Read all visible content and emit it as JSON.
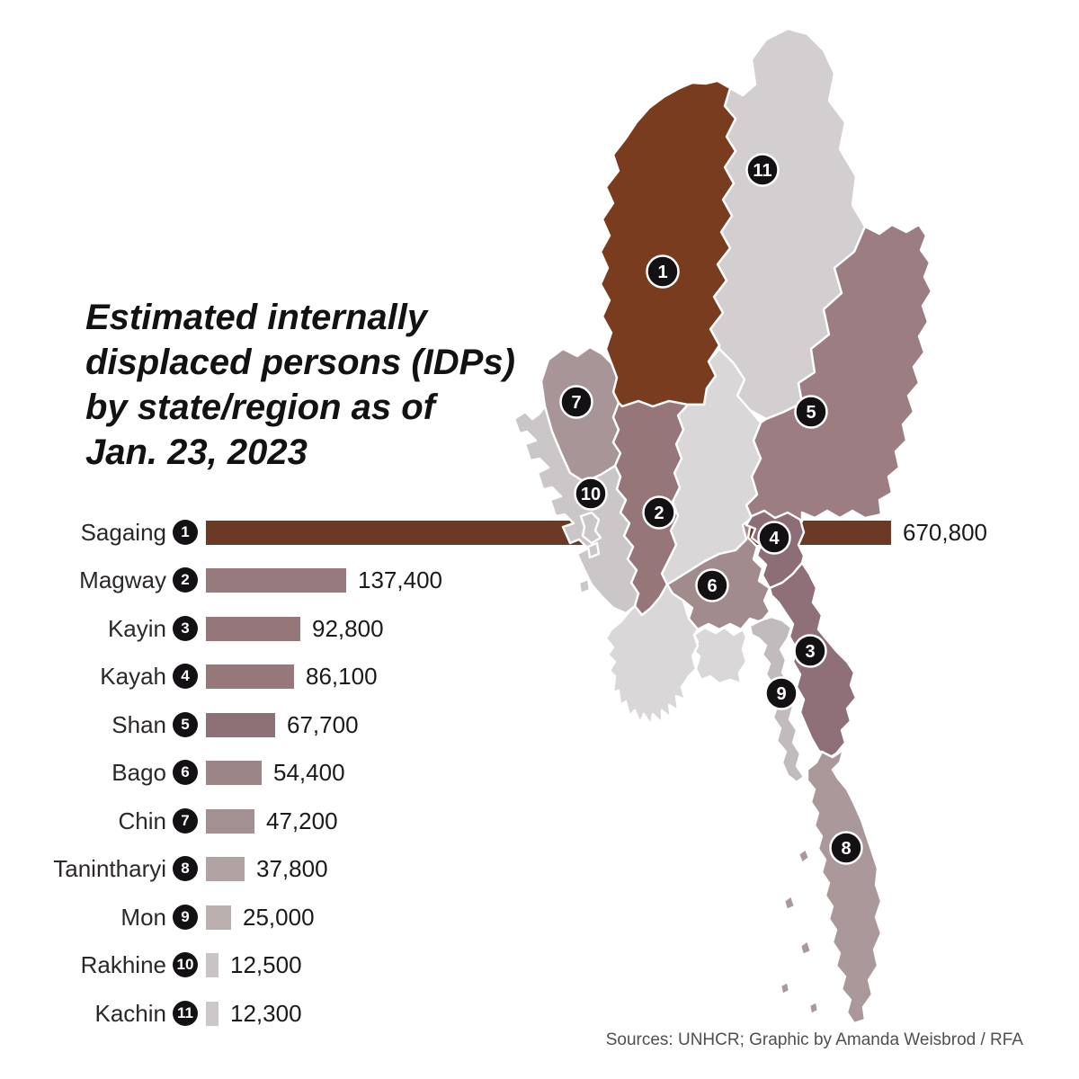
{
  "title": {
    "line1": "Estimated internally",
    "line2": "displaced persons (IDPs)",
    "line3": "by state/region as of",
    "line4": "Jan. 23, 2023",
    "full": "Estimated internally displaced persons (IDPs) by state/region as of Jan. 23, 2023"
  },
  "source": {
    "text": "Sources: UNHCR; Graphic by Amanda Weisbrod / RFA"
  },
  "map": {
    "badge_fill": "#141114",
    "badge_text_color": "#ffffff",
    "outline_color": "#ffffff",
    "other_region_color": "#d9d7d7"
  },
  "states": [
    {
      "rank": 1,
      "name": "Sagaing",
      "value": 670800,
      "value_label": "670,800",
      "bar_color": "#6b3924",
      "region_color": "#7a3c1e"
    },
    {
      "rank": 2,
      "name": "Magway",
      "value": 137400,
      "value_label": "137,400",
      "bar_color": "#977a7d",
      "region_color": "#967679"
    },
    {
      "rank": 3,
      "name": "Kayin",
      "value": 92800,
      "value_label": "92,800",
      "bar_color": "#967779",
      "region_color": "#8f7078"
    },
    {
      "rank": 4,
      "name": "Kayah",
      "value": 86100,
      "value_label": "86,100",
      "bar_color": "#96787b",
      "region_color": "#8d6e76"
    },
    {
      "rank": 5,
      "name": "Shan",
      "value": 67700,
      "value_label": "67,700",
      "bar_color": "#8e7077",
      "region_color": "#9c7e82"
    },
    {
      "rank": 6,
      "name": "Bago",
      "value": 54400,
      "value_label": "54,400",
      "bar_color": "#9c8587",
      "region_color": "#a28b8d"
    },
    {
      "rank": 7,
      "name": "Chin",
      "value": 47200,
      "value_label": "47,200",
      "bar_color": "#a39092",
      "region_color": "#a79597"
    },
    {
      "rank": 8,
      "name": "Tanintharyi",
      "value": 37800,
      "value_label": "37,800",
      "bar_color": "#b1a2a3",
      "region_color": "#ab989b"
    },
    {
      "rank": 9,
      "name": "Mon",
      "value": 25000,
      "value_label": "25,000",
      "bar_color": "#bab0b0",
      "region_color": "#c2bbbd"
    },
    {
      "rank": 10,
      "name": "Rakhine",
      "value": 12500,
      "value_label": "12,500",
      "bar_color": "#c8c3c5",
      "region_color": "#cbc6c8"
    },
    {
      "rank": 11,
      "name": "Kachin",
      "value": 12300,
      "value_label": "12,300",
      "bar_color": "#ccc8ca",
      "region_color": "#d3ced0"
    }
  ],
  "chart_data": {
    "type": "bar",
    "orientation": "horizontal",
    "title": "Estimated internally displaced persons (IDPs) by state/region as of Jan. 23, 2023",
    "categories": [
      "Sagaing",
      "Magway",
      "Kayin",
      "Kayah",
      "Shan",
      "Bago",
      "Chin",
      "Tanintharyi",
      "Mon",
      "Rakhine",
      "Kachin"
    ],
    "values": [
      670800,
      137400,
      92800,
      86100,
      67700,
      54400,
      47200,
      37800,
      25000,
      12500,
      12300
    ],
    "value_labels": [
      "670,800",
      "137,400",
      "92,800",
      "86,100",
      "67,700",
      "54,400",
      "47,200",
      "37,800",
      "25,000",
      "12,500",
      "12,300"
    ],
    "ranks": [
      1,
      2,
      3,
      4,
      5,
      6,
      7,
      8,
      9,
      10,
      11
    ],
    "bar_colors": [
      "#6b3924",
      "#977a7d",
      "#967779",
      "#96787b",
      "#8e7077",
      "#9c8587",
      "#a39092",
      "#b1a2a3",
      "#bab0b0",
      "#c8c3c5",
      "#ccc8ca"
    ],
    "xlim": [
      0,
      670800
    ],
    "xlabel": "",
    "ylabel": "",
    "grid": false,
    "legend": "none",
    "note": "Each bar is numbered 1-11 matching the numbered state/region on the Myanmar map; map shading matches bar color.",
    "source": "Sources: UNHCR; Graphic by Amanda Weisbrod / RFA"
  }
}
